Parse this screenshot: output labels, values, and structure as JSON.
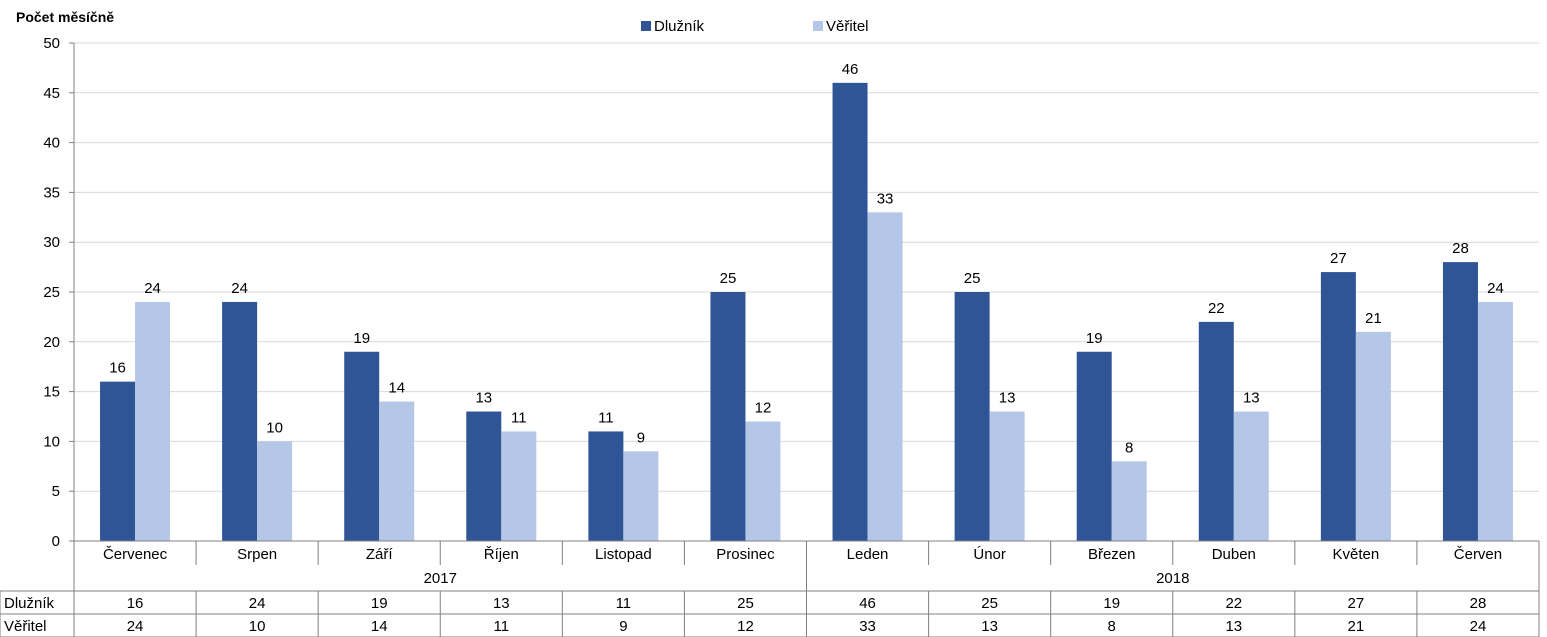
{
  "chart_data": {
    "type": "bar",
    "ylabel": "Počet měsíčně",
    "ylim": [
      0,
      50
    ],
    "yticks": [
      0,
      5,
      10,
      15,
      20,
      25,
      30,
      35,
      40,
      45,
      50
    ],
    "grid": true,
    "legend_position": "top-center",
    "categories": [
      "Červenec",
      "Srpen",
      "Září",
      "Říjen",
      "Listopad",
      "Prosinec",
      "Leden",
      "Únor",
      "Březen",
      "Duben",
      "Květen",
      "Červen"
    ],
    "year_groups": [
      {
        "label": "2017",
        "count": 6
      },
      {
        "label": "2018",
        "count": 6
      }
    ],
    "series": [
      {
        "name": "Dlužník",
        "color": "#2F5597",
        "values": [
          16,
          24,
          19,
          13,
          11,
          25,
          46,
          25,
          19,
          22,
          27,
          28
        ]
      },
      {
        "name": "Věřitel",
        "color": "#B4C7E7",
        "values": [
          24,
          10,
          14,
          11,
          9,
          12,
          33,
          13,
          8,
          13,
          21,
          24
        ]
      }
    ]
  }
}
